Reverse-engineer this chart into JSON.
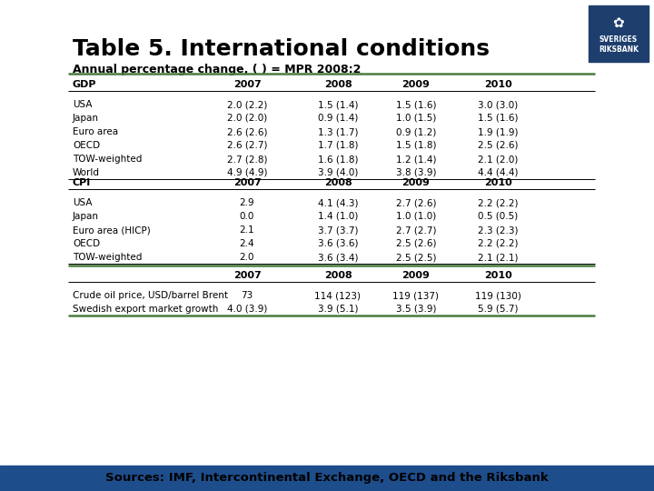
{
  "title": "Table 5. International conditions",
  "subtitle": "Annual percentage change, ( ) = MPR 2008:2",
  "sources": "Sources: IMF, Intercontinental Exchange, OECD and the Riksbank",
  "bar_color": "#1e4d8c",
  "bg_color": "#ffffff",
  "logo_color": "#1e3f6e",
  "green_line_color": "#4a7c3f",
  "gdp_section": {
    "header": "GDP",
    "years": [
      "2007",
      "2008",
      "2009",
      "2010"
    ],
    "rows": [
      [
        "USA",
        "2.0 (2.2)",
        "1.5 (1.4)",
        "1.5 (1.6)",
        "3.0 (3.0)"
      ],
      [
        "Japan",
        "2.0 (2.0)",
        "0.9 (1.4)",
        "1.0 (1.5)",
        "1.5 (1.6)"
      ],
      [
        "Euro area",
        "2.6 (2.6)",
        "1.3 (1.7)",
        "0.9 (1.2)",
        "1.9 (1.9)"
      ],
      [
        "OECD",
        "2.6 (2.7)",
        "1.7 (1.8)",
        "1.5 (1.8)",
        "2.5 (2.6)"
      ],
      [
        "TOW-weighted",
        "2.7 (2.8)",
        "1.6 (1.8)",
        "1.2 (1.4)",
        "2.1 (2.0)"
      ],
      [
        "World",
        "4.9 (4.9)",
        "3.9 (4.0)",
        "3.8 (3.9)",
        "4.4 (4.4)"
      ]
    ]
  },
  "cpi_section": {
    "header": "CPI",
    "years": [
      "2007",
      "2008",
      "2009",
      "2010"
    ],
    "rows": [
      [
        "USA",
        "2.9",
        "4.1 (4.3)",
        "2.7 (2.6)",
        "2.2 (2.2)"
      ],
      [
        "Japan",
        "0.0",
        "1.4 (1.0)",
        "1.0 (1.0)",
        "0.5 (0.5)"
      ],
      [
        "Euro area (HICP)",
        "2.1",
        "3.7 (3.7)",
        "2.7 (2.7)",
        "2.3 (2.3)"
      ],
      [
        "OECD",
        "2.4",
        "3.6 (3.6)",
        "2.5 (2.6)",
        "2.2 (2.2)"
      ],
      [
        "TOW-weighted",
        "2.0",
        "3.6 (3.4)",
        "2.5 (2.5)",
        "2.1 (2.1)"
      ]
    ]
  },
  "other_section": {
    "years": [
      "2007",
      "2008",
      "2009",
      "2010"
    ],
    "rows": [
      [
        "Crude oil price, USD/barrel Brent",
        "73",
        "114 (123)",
        "119 (137)",
        "119 (130)"
      ],
      [
        "Swedish export market growth",
        "4.0 (3.9)",
        "3.9 (5.1)",
        "3.5 (3.9)",
        "5.9 (5.7)"
      ]
    ]
  }
}
